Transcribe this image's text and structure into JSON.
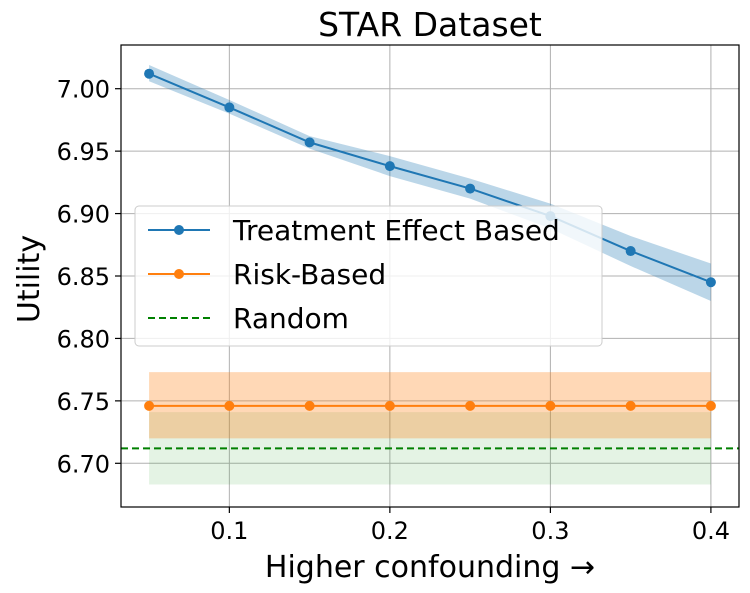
{
  "chart_data": {
    "type": "line",
    "title": "STAR Dataset",
    "xlabel": "Higher confounding →",
    "ylabel": "Utility",
    "xlim": [
      0.0325,
      0.4175
    ],
    "ylim": [
      6.665,
      7.035
    ],
    "xticks": [
      0.1,
      0.2,
      0.3,
      0.4
    ],
    "xtick_labels": [
      "0.1",
      "0.2",
      "0.3",
      "0.4"
    ],
    "yticks": [
      6.7,
      6.75,
      6.8,
      6.85,
      6.9,
      6.95,
      7.0
    ],
    "ytick_labels": [
      "6.70",
      "6.75",
      "6.80",
      "6.85",
      "6.90",
      "6.95",
      "7.00"
    ],
    "grid": true,
    "legend_position": "center-left",
    "x": [
      0.05,
      0.1,
      0.15,
      0.2,
      0.25,
      0.3,
      0.35,
      0.4
    ],
    "series": [
      {
        "name": "Treatment Effect Based",
        "color": "#1f77b4",
        "style": "solid-marker",
        "values": [
          7.012,
          6.985,
          6.957,
          6.938,
          6.92,
          6.898,
          6.87,
          6.845
        ],
        "band_lower": [
          7.006,
          6.98,
          6.952,
          6.93,
          6.912,
          6.888,
          6.858,
          6.83
        ],
        "band_upper": [
          7.019,
          6.991,
          6.962,
          6.946,
          6.928,
          6.908,
          6.882,
          6.86
        ]
      },
      {
        "name": "Risk-Based",
        "color": "#ff7f0e",
        "style": "solid-marker",
        "values": [
          6.746,
          6.746,
          6.746,
          6.746,
          6.746,
          6.746,
          6.746,
          6.746
        ],
        "band_lower": [
          6.72,
          6.72,
          6.72,
          6.72,
          6.72,
          6.72,
          6.72,
          6.72
        ],
        "band_upper": [
          6.773,
          6.773,
          6.773,
          6.773,
          6.773,
          6.773,
          6.773,
          6.773
        ]
      },
      {
        "name": "Random",
        "color": "#008000",
        "style": "dashed",
        "constant": 6.712,
        "band_lower": [
          6.683,
          6.683,
          6.683,
          6.683,
          6.683,
          6.683,
          6.683,
          6.683
        ],
        "band_upper": [
          6.741,
          6.741,
          6.741,
          6.741,
          6.741,
          6.741,
          6.741,
          6.741
        ]
      }
    ]
  }
}
